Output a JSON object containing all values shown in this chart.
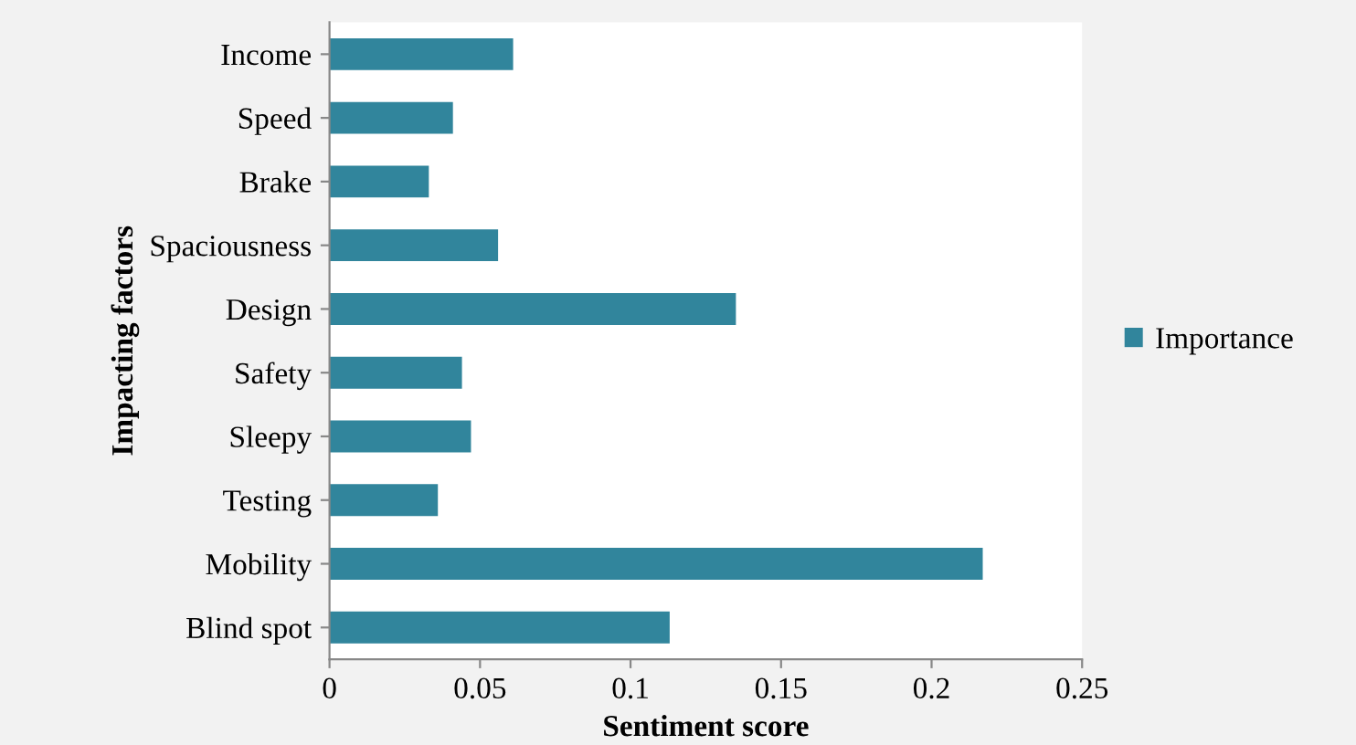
{
  "chart_data": {
    "type": "bar",
    "orientation": "horizontal",
    "xlabel": "Sentiment score",
    "ylabel": "Impacting factors",
    "categories": [
      "Income",
      "Speed",
      "Brake",
      "Spaciousness",
      "Design",
      "Safety",
      "Sleepy",
      "Testing",
      "Mobility",
      "Blind spot"
    ],
    "series": [
      {
        "name": "Importance",
        "color": "#31859c",
        "values": [
          0.061,
          0.041,
          0.033,
          0.056,
          0.135,
          0.044,
          0.047,
          0.036,
          0.217,
          0.113
        ]
      }
    ],
    "xlim": [
      0,
      0.25
    ],
    "xticks": [
      0,
      0.05,
      0.1,
      0.15,
      0.2,
      0.25
    ],
    "grid": false,
    "legend": "right"
  }
}
